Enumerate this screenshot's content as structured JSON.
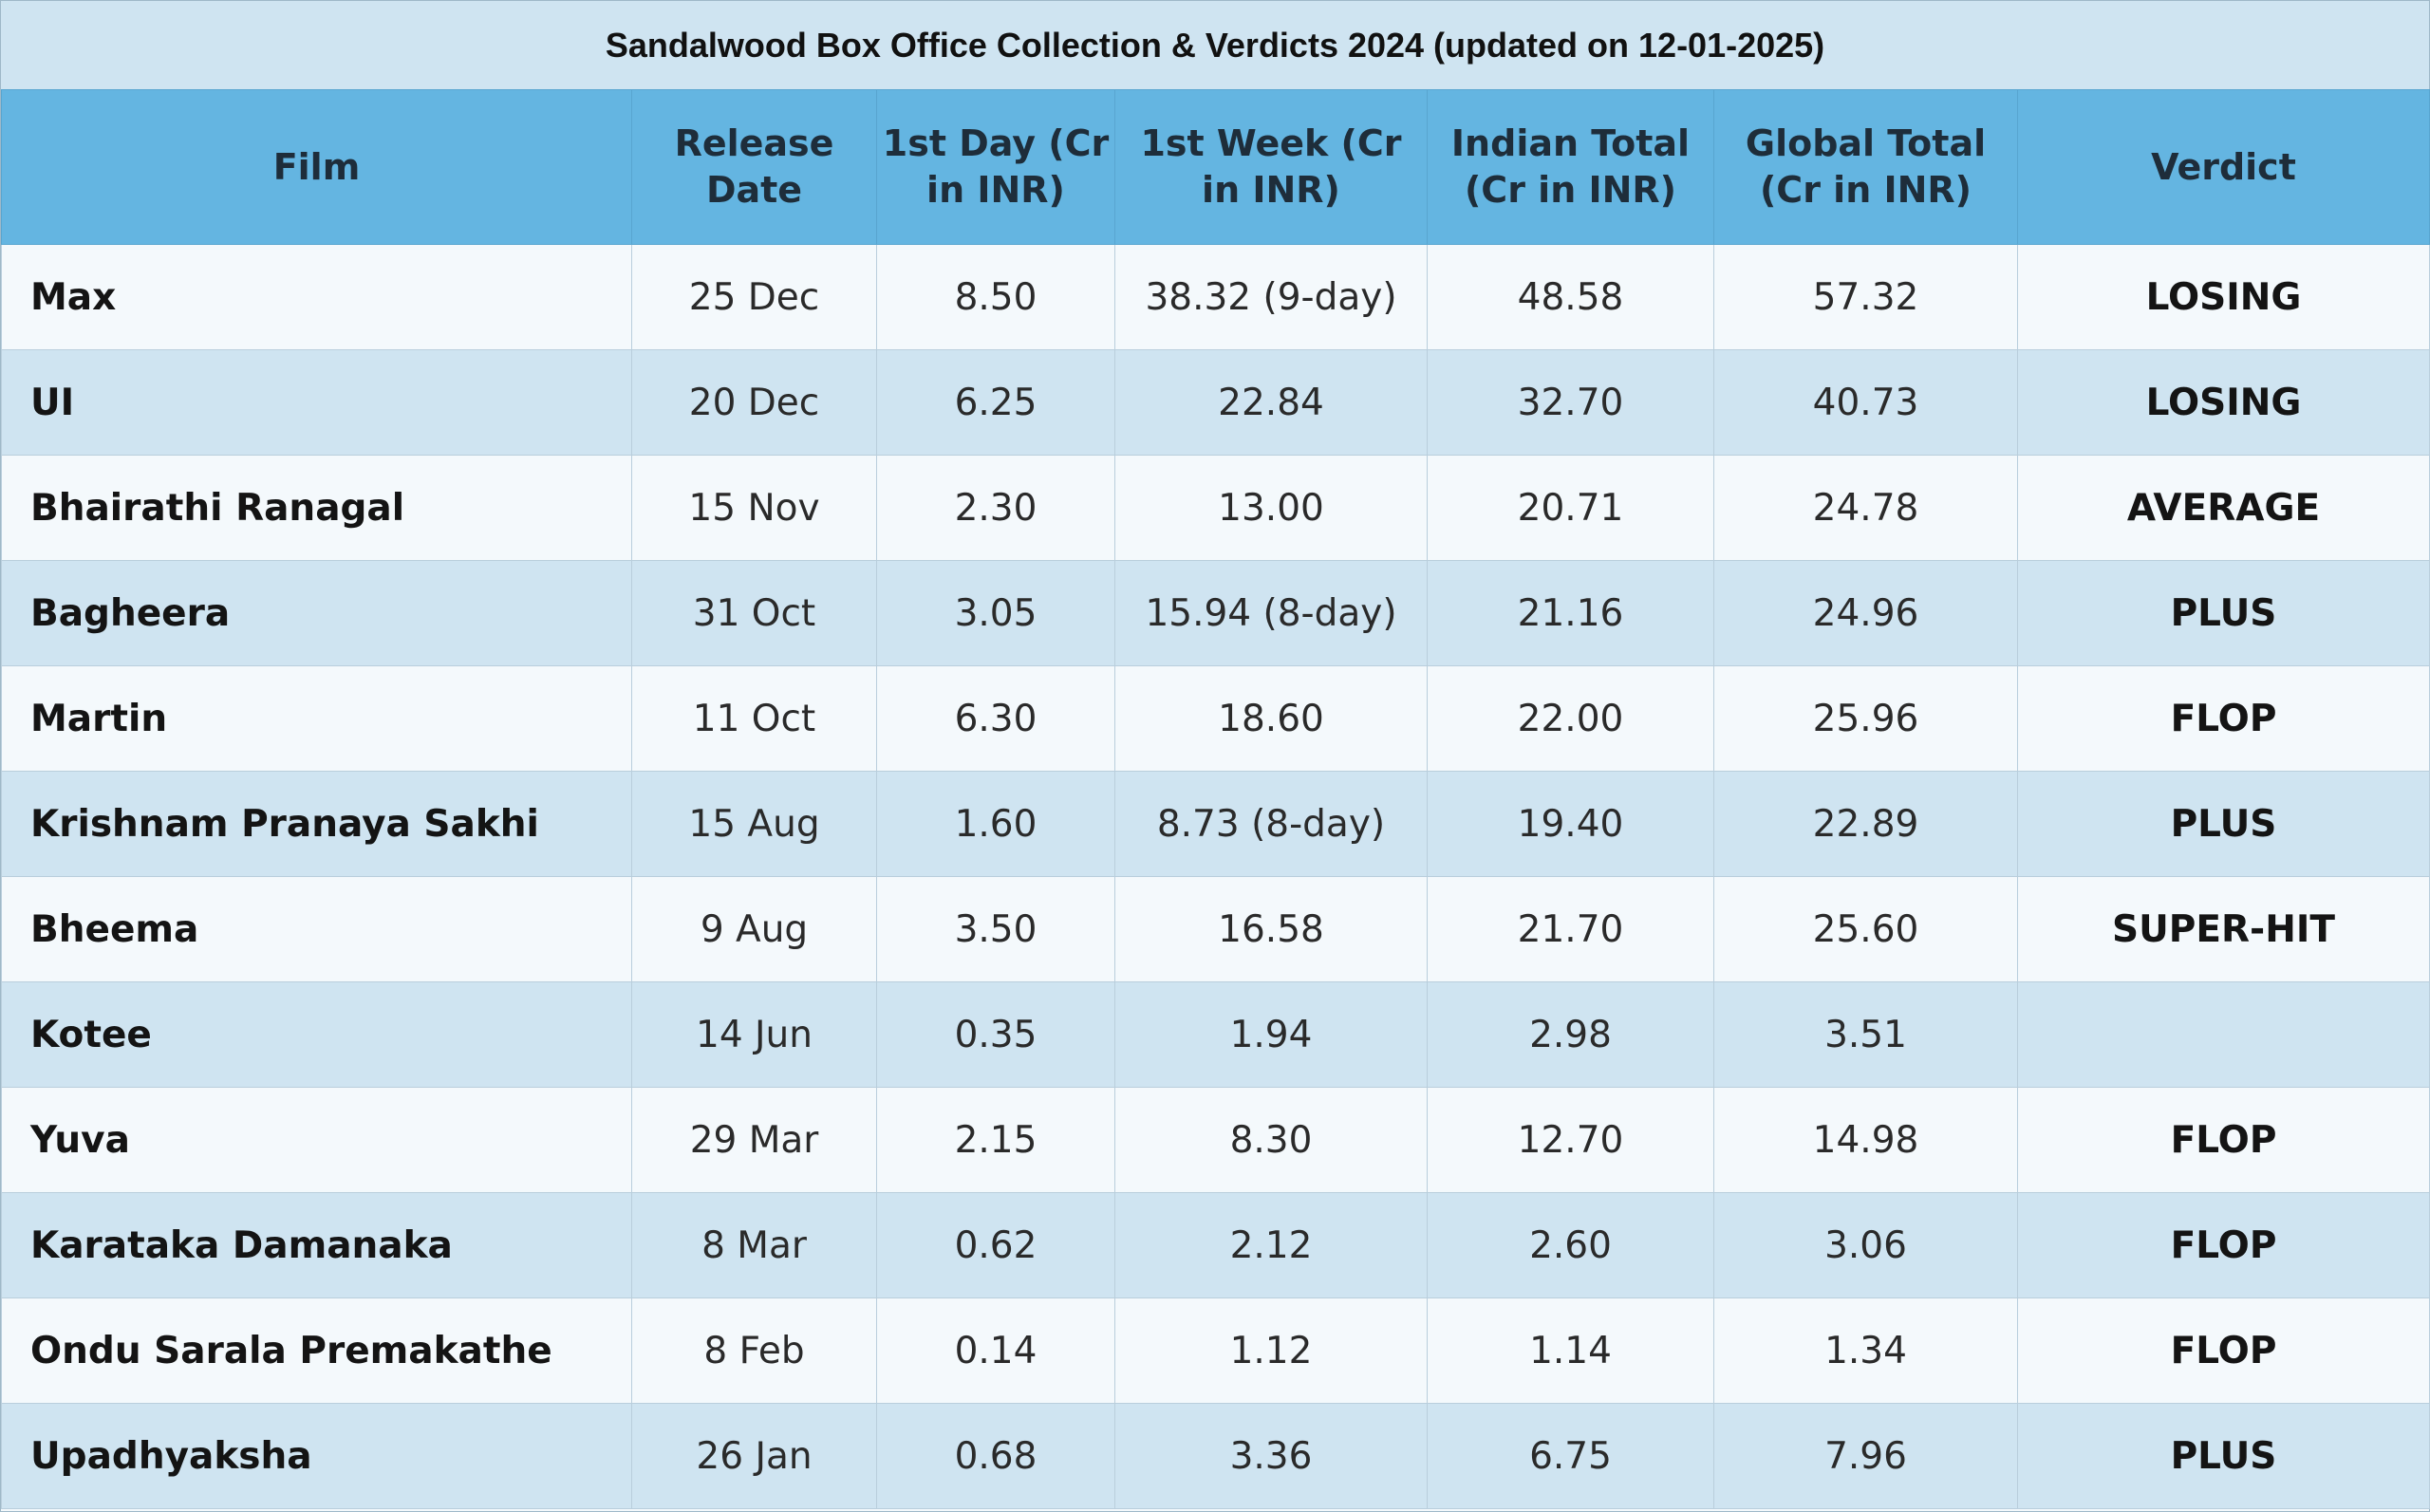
{
  "chart_data": {
    "type": "table",
    "title": "Sandalwood Box Office Collection & Verdicts 2024 (updated on 12-01-2025)",
    "columns": [
      "Film",
      "Release Date",
      "1st Day (Cr in INR)",
      "1st Week (Cr in INR)",
      "Indian Total (Cr in INR)",
      "Global Total (Cr in INR)",
      "Verdict"
    ],
    "rows": [
      [
        "Max",
        "25 Dec",
        "8.50",
        "38.32 (9-day)",
        "48.58",
        "57.32",
        "LOSING"
      ],
      [
        "UI",
        "20 Dec",
        "6.25",
        "22.84",
        "32.70",
        "40.73",
        "LOSING"
      ],
      [
        "Bhairathi Ranagal",
        "15 Nov",
        "2.30",
        "13.00",
        "20.71",
        "24.78",
        "AVERAGE"
      ],
      [
        "Bagheera",
        "31 Oct",
        "3.05",
        "15.94 (8-day)",
        "21.16",
        "24.96",
        "PLUS"
      ],
      [
        "Martin",
        "11 Oct",
        "6.30",
        "18.60",
        "22.00",
        "25.96",
        "FLOP"
      ],
      [
        "Krishnam Pranaya Sakhi",
        "15 Aug",
        "1.60",
        "8.73 (8-day)",
        "19.40",
        "22.89",
        "PLUS"
      ],
      [
        "Bheema",
        "9 Aug",
        "3.50",
        "16.58",
        "21.70",
        "25.60",
        "SUPER-HIT"
      ],
      [
        "Kotee",
        "14 Jun",
        "0.35",
        "1.94",
        "2.98",
        "3.51",
        ""
      ],
      [
        "Yuva",
        "29 Mar",
        "2.15",
        "8.30",
        "12.70",
        "14.98",
        "FLOP"
      ],
      [
        "Karataka Damanaka",
        "8 Mar",
        "0.62",
        "2.12",
        "2.60",
        "3.06",
        "FLOP"
      ],
      [
        "Ondu Sarala Premakathe",
        "8 Feb",
        "0.14",
        "1.12",
        "1.14",
        "1.34",
        "FLOP"
      ],
      [
        "Upadhyaksha",
        "26 Jan",
        "0.68",
        "3.36",
        "6.75",
        "7.96",
        "PLUS"
      ]
    ]
  },
  "colors": {
    "header_background": "#64b5e1",
    "title_background": "#cfe4f1",
    "row_odd": "#f4f9fc",
    "row_even": "#cfe4f1"
  }
}
